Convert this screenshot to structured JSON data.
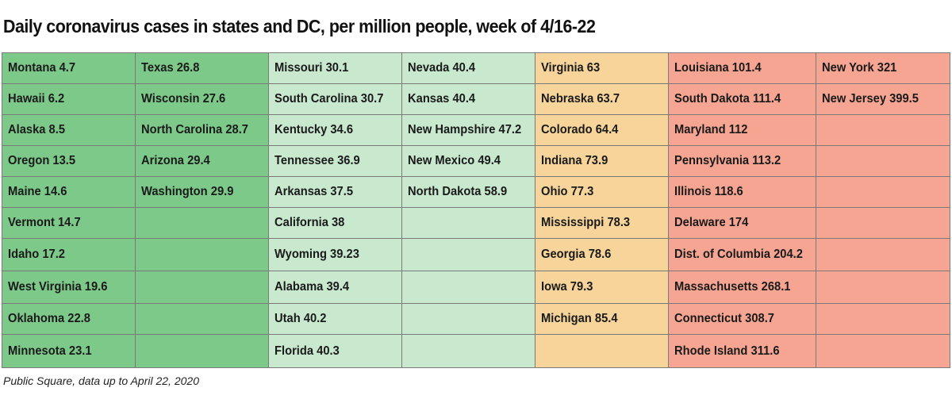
{
  "chart_data": {
    "type": "table",
    "title": "Daily coronavirus cases in states and DC, per million people, week of 4/16-22",
    "source": "Public Square, data up to April 22, 2020",
    "columns": [
      {
        "color": "#7dc98a",
        "cells": [
          "Montana 4.7",
          "Hawaii 6.2",
          "Alaska 8.5",
          "Oregon 13.5",
          "Maine 14.6",
          "Vermont 14.7",
          "Idaho 17.2",
          "West Virginia 19.6",
          "Oklahoma 22.8",
          "Minnesota 23.1"
        ]
      },
      {
        "color": "#7dc98a",
        "cells": [
          "Texas 26.8",
          "Wisconsin 27.6",
          "North Carolina 28.7",
          "Arizona 29.4",
          "Washington 29.9",
          "",
          "",
          "",
          "",
          ""
        ]
      },
      {
        "color": "#c9e9cf",
        "cells": [
          "Missouri 30.1",
          "South Carolina 30.7",
          "Kentucky 34.6",
          "Tennessee 36.9",
          "Arkansas 37.5",
          "California 38",
          "Wyoming 39.23",
          "Alabama 39.4",
          "Utah 40.2",
          "Florida 40.3"
        ]
      },
      {
        "color": "#c9e9cf",
        "cells": [
          "Nevada 40.4",
          "Kansas 40.4",
          "New Hampshire 47.2",
          "New Mexico 49.4",
          "North Dakota 58.9",
          "",
          "",
          "",
          "",
          ""
        ]
      },
      {
        "color": "#f6d49a",
        "cells": [
          "Virginia 63",
          "Nebraska 63.7",
          "Colorado 64.4",
          "Indiana 73.9",
          "Ohio 77.3",
          "Mississippi 78.3",
          "Georgia 78.6",
          "Iowa 79.3",
          "Michigan 85.4",
          ""
        ]
      },
      {
        "color": "#f5a592",
        "cells": [
          "Louisiana 101.4",
          "South Dakota 111.4",
          "Maryland 112",
          "Pennsylvania 113.2",
          "Illinois 118.6",
          "Delaware 174",
          "Dist. of Columbia 204.2",
          "Massachusetts 268.1",
          "Connecticut 308.7",
          "Rhode Island 311.6"
        ]
      },
      {
        "color": "#f5a592",
        "cells": [
          "New York 321",
          "New Jersey 399.5",
          "",
          "",
          "",
          "",
          "",
          "",
          "",
          ""
        ]
      }
    ]
  }
}
